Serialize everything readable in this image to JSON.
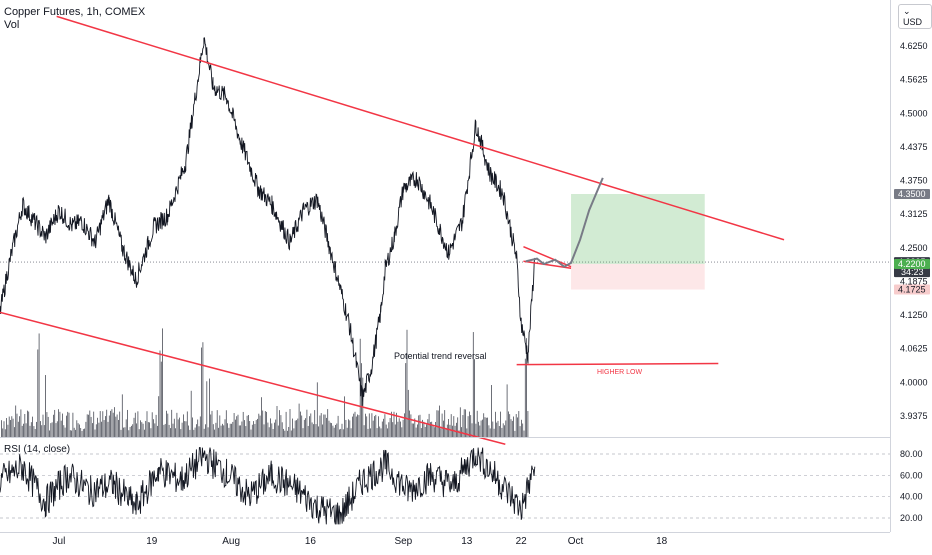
{
  "header": {
    "title": "Copper Futures, 1h, COMEX",
    "vol_label": "Vol",
    "currency": "USD"
  },
  "rsi": {
    "label": "RSI (14, close)",
    "levels": [
      80.0,
      60.0,
      40.0,
      20.0
    ],
    "level_labels": [
      "80.00",
      "60.00",
      "40.00",
      "20.00"
    ]
  },
  "price_scale": {
    "ticks": [
      4.625,
      4.5625,
      4.5,
      4.4375,
      4.375,
      4.3125,
      4.25,
      4.1875,
      4.125,
      4.0625,
      4.0,
      3.9375
    ],
    "tick_labels": [
      "4.6250",
      "4.5625",
      "4.5000",
      "4.4375",
      "4.3750",
      "4.3125",
      "4.2500",
      "4.1875",
      "4.1250",
      "4.0625",
      "4.0000",
      "3.9375"
    ],
    "badges": {
      "target": {
        "value": 4.35,
        "label": "4.3500",
        "color": "#787b86"
      },
      "current": {
        "value": 4.2235,
        "label": "4.2235",
        "timer": "34:23",
        "color": "#363a45"
      },
      "entry": {
        "value": 4.22,
        "label": "4.2200",
        "color": "#4caf50"
      },
      "stop": {
        "value": 4.1725,
        "label": "4.1725",
        "color": "#f7cccc"
      }
    }
  },
  "time_axis": {
    "labels": [
      "Jul",
      "19",
      "Aug",
      "16",
      "Sep",
      "13",
      "22",
      "Oct",
      "18"
    ]
  },
  "annotations": {
    "reversal_text": "Potential trend reversal",
    "higher_low_text": "HIGHER LOW"
  },
  "colors": {
    "trendline": "#f23645",
    "price_line": "#131722",
    "rsi_line": "#131722",
    "projection": "#787b86",
    "profit_zone": "rgba(76,175,80,0.25)",
    "loss_zone": "rgba(242,54,69,0.12)"
  },
  "chart_data": {
    "type": "line",
    "title": "Copper Futures, 1h, COMEX",
    "ylim": [
      3.9,
      4.67
    ],
    "price": {
      "x": [
        0,
        0.4,
        1,
        2,
        2.6,
        3.2,
        3.6,
        4.2,
        4.8,
        5.4,
        6,
        6.8,
        7.4,
        8.2,
        9,
        9.4,
        10,
        10.6,
        11.4,
        12,
        12.8,
        13.4,
        14,
        14.8,
        15.4,
        16,
        16.4,
        16.8,
        17,
        17.4,
        17.8,
        18.4,
        19,
        19.8,
        20.4,
        21,
        21.6,
        22.2,
        22.8,
        23,
        23.3,
        23.6
      ],
      "y": [
        4.13,
        4.22,
        4.33,
        4.27,
        4.32,
        4.29,
        4.3,
        4.26,
        4.34,
        4.25,
        4.19,
        4.29,
        4.31,
        4.41,
        4.64,
        4.55,
        4.53,
        4.45,
        4.36,
        4.33,
        4.26,
        4.32,
        4.34,
        4.21,
        4.11,
        3.97,
        4.03,
        4.13,
        4.21,
        4.27,
        4.36,
        4.38,
        4.33,
        4.24,
        4.3,
        4.48,
        4.39,
        4.35,
        4.23,
        4.11,
        4.05,
        4.23
      ]
    },
    "volume": {
      "ymax": 1.0,
      "note_spikes_x": [
        1.7,
        7.1,
        8.9,
        15.9,
        17.9,
        20.9,
        23.2
      ]
    },
    "rsi": {
      "ylim": [
        10,
        90
      ],
      "x": [
        0,
        1,
        2,
        3,
        4,
        5,
        6,
        7,
        8,
        9,
        10,
        11,
        12,
        13,
        14,
        15,
        16,
        17,
        18,
        19,
        20,
        21,
        22,
        23,
        23.6
      ],
      "y": [
        55,
        68,
        35,
        60,
        45,
        52,
        30,
        65,
        55,
        78,
        62,
        40,
        60,
        48,
        30,
        22,
        55,
        70,
        45,
        60,
        50,
        82,
        55,
        28,
        68
      ]
    },
    "trendlines": [
      {
        "name": "upper",
        "x1": 2.5,
        "y1": 4.68,
        "x2": 34.6,
        "y2": 4.265
      },
      {
        "name": "lower",
        "x1": 0,
        "y1": 4.13,
        "x2": 22.3,
        "y2": 3.885
      },
      {
        "name": "pennant-top",
        "x1": 23.1,
        "y1": 4.252,
        "x2": 25.2,
        "y2": 4.215
      },
      {
        "name": "pennant-bottom",
        "x1": 23.1,
        "y1": 4.225,
        "x2": 25.2,
        "y2": 4.212
      },
      {
        "name": "higher-low",
        "x1": 22.8,
        "y1": 4.033,
        "x2": 31.7,
        "y2": 4.035
      }
    ],
    "position": {
      "x1": 25.2,
      "x2": 31.1,
      "target": 4.35,
      "entry": 4.22,
      "stop": 4.1725
    },
    "projection": {
      "x": [
        23.2,
        23.7,
        24.0,
        24.5,
        24.9,
        25.2,
        25.6,
        26.0,
        26.6
      ],
      "y": [
        4.225,
        4.23,
        4.22,
        4.228,
        4.215,
        4.222,
        4.265,
        4.32,
        4.38
      ]
    },
    "x_ticks": [
      {
        "x": 2.6,
        "label": "Jul"
      },
      {
        "x": 6.7,
        "label": "19"
      },
      {
        "x": 10.2,
        "label": "Aug"
      },
      {
        "x": 13.7,
        "label": "16"
      },
      {
        "x": 17.8,
        "label": "Sep"
      },
      {
        "x": 20.6,
        "label": "13"
      },
      {
        "x": 23.0,
        "label": "22"
      },
      {
        "x": 25.4,
        "label": "Oct"
      },
      {
        "x": 29.2,
        "label": "18"
      }
    ]
  }
}
